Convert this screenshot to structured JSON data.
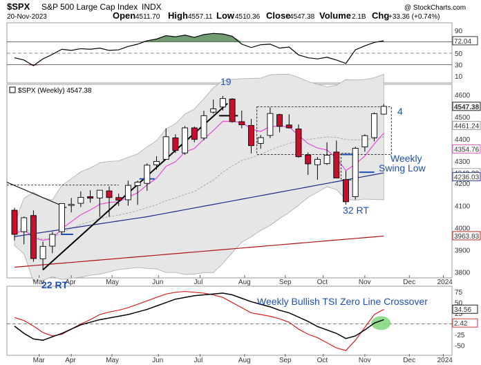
{
  "header": {
    "symbol": "$SPX",
    "name": "S&P 500 Large Cap Index",
    "exchange": "INDX",
    "watermark": "@ StockCharts.com",
    "date": "20-Nov-2023",
    "open_label": "Open",
    "open": "4511.70",
    "high_label": "High",
    "high": "4557.11",
    "low_label": "Low",
    "low": "4510.36",
    "close_label": "Close",
    "close": "4547.38",
    "volume_label": "Volume",
    "volume": "2.1B",
    "chg_label": "Chg",
    "chg": "+33.36 (+0.74%)"
  },
  "price_legend": "$SPX (Weekly) 4547.38",
  "chart_data": [
    {
      "type": "line",
      "panel": "RSI",
      "y_ticks": [
        "90",
        "70",
        "50",
        "30",
        "10"
      ],
      "ylim": [
        0,
        100
      ],
      "current_value_label": "72.04",
      "current_value": 72.04,
      "x": [
        "2023-02-20",
        "2023-02-27",
        "2023-03-06",
        "2023-03-13",
        "2023-03-20",
        "2023-03-27",
        "2023-04-03",
        "2023-04-10",
        "2023-04-17",
        "2023-04-24",
        "2023-05-01",
        "2023-05-08",
        "2023-05-15",
        "2023-05-22",
        "2023-05-29",
        "2023-06-05",
        "2023-06-12",
        "2023-06-19",
        "2023-06-26",
        "2023-07-03",
        "2023-07-10",
        "2023-07-17",
        "2023-07-24",
        "2023-07-31",
        "2023-08-07",
        "2023-08-14",
        "2023-08-21",
        "2023-08-28",
        "2023-09-04",
        "2023-09-11",
        "2023-09-18",
        "2023-09-25",
        "2023-10-02",
        "2023-10-09",
        "2023-10-16",
        "2023-10-23",
        "2023-10-30",
        "2023-11-06",
        "2023-11-13",
        "2023-11-20"
      ],
      "values": [
        42,
        38,
        28,
        40,
        48,
        57,
        55,
        58,
        57,
        59,
        55,
        56,
        62,
        66,
        72,
        75,
        81,
        79,
        82,
        78,
        83,
        85,
        84,
        80,
        66,
        60,
        65,
        66,
        59,
        61,
        47,
        42,
        40,
        43,
        38,
        32,
        56,
        63,
        69,
        72
      ]
    },
    {
      "type": "candlestick",
      "panel": "Price",
      "title": "$SPX (Weekly) 4547.38",
      "y_ticks": [
        3800,
        3900,
        4000,
        4100,
        4200,
        4300,
        4400,
        4500,
        4600
      ],
      "ylim": [
        3780,
        4640
      ],
      "x_ticks": [
        "Mar",
        "Apr",
        "May",
        "Jun",
        "Jul",
        "Aug",
        "Sep",
        "Oct",
        "Nov",
        "Dec",
        "2024"
      ],
      "value_labels": [
        "4547.38",
        "4461.24",
        "4354.76",
        "4248.29",
        "4236.03",
        "3963.83"
      ],
      "candles": [
        {
          "date": "2023-02-20",
          "o": 4079,
          "h": 4090,
          "l": 3943,
          "c": 3970
        },
        {
          "date": "2023-02-27",
          "o": 3982,
          "h": 4050,
          "l": 3925,
          "c": 4045
        },
        {
          "date": "2023-03-06",
          "o": 4055,
          "h": 4078,
          "l": 3847,
          "c": 3861
        },
        {
          "date": "2023-03-13",
          "o": 3860,
          "h": 3937,
          "l": 3809,
          "c": 3916
        },
        {
          "date": "2023-03-20",
          "o": 3917,
          "h": 3981,
          "l": 3885,
          "c": 3970
        },
        {
          "date": "2023-03-27",
          "o": 3982,
          "h": 4110,
          "l": 3970,
          "c": 4109
        },
        {
          "date": "2023-04-03",
          "o": 4102,
          "h": 4134,
          "l": 4069,
          "c": 4105
        },
        {
          "date": "2023-04-10",
          "o": 4110,
          "h": 4164,
          "l": 4093,
          "c": 4137
        },
        {
          "date": "2023-04-17",
          "o": 4140,
          "h": 4169,
          "l": 4113,
          "c": 4133
        },
        {
          "date": "2023-04-24",
          "o": 4134,
          "h": 4170,
          "l": 4049,
          "c": 4169
        },
        {
          "date": "2023-05-01",
          "o": 4166,
          "h": 4186,
          "l": 4049,
          "c": 4136
        },
        {
          "date": "2023-05-08",
          "o": 4136,
          "h": 4154,
          "l": 4098,
          "c": 4124
        },
        {
          "date": "2023-05-15",
          "o": 4126,
          "h": 4212,
          "l": 4099,
          "c": 4191
        },
        {
          "date": "2023-05-22",
          "o": 4190,
          "h": 4212,
          "l": 4103,
          "c": 4205
        },
        {
          "date": "2023-05-29",
          "o": 4200,
          "h": 4290,
          "l": 4166,
          "c": 4282
        },
        {
          "date": "2023-06-05",
          "o": 4283,
          "h": 4322,
          "l": 4262,
          "c": 4299
        },
        {
          "date": "2023-06-12",
          "o": 4308,
          "h": 4448,
          "l": 4308,
          "c": 4410
        },
        {
          "date": "2023-06-19",
          "o": 4405,
          "h": 4421,
          "l": 4337,
          "c": 4348
        },
        {
          "date": "2023-06-26",
          "o": 4337,
          "h": 4458,
          "l": 4328,
          "c": 4450
        },
        {
          "date": "2023-07-03",
          "o": 4450,
          "h": 4456,
          "l": 4385,
          "c": 4398
        },
        {
          "date": "2023-07-10",
          "o": 4404,
          "h": 4527,
          "l": 4394,
          "c": 4505
        },
        {
          "date": "2023-07-17",
          "o": 4521,
          "h": 4578,
          "l": 4514,
          "c": 4536
        },
        {
          "date": "2023-07-24",
          "o": 4544,
          "h": 4594,
          "l": 4528,
          "c": 4582
        },
        {
          "date": "2023-07-31",
          "o": 4580,
          "h": 4584,
          "l": 4474,
          "c": 4478
        },
        {
          "date": "2023-08-07",
          "o": 4478,
          "h": 4528,
          "l": 4448,
          "c": 4464
        },
        {
          "date": "2023-08-14",
          "o": 4461,
          "h": 4490,
          "l": 4335,
          "c": 4370
        },
        {
          "date": "2023-08-21",
          "o": 4380,
          "h": 4418,
          "l": 4356,
          "c": 4406
        },
        {
          "date": "2023-08-28",
          "o": 4416,
          "h": 4542,
          "l": 4404,
          "c": 4515
        },
        {
          "date": "2023-09-04",
          "o": 4510,
          "h": 4514,
          "l": 4430,
          "c": 4457
        },
        {
          "date": "2023-09-11",
          "o": 4463,
          "h": 4511,
          "l": 4447,
          "c": 4450
        },
        {
          "date": "2023-09-18",
          "o": 4445,
          "h": 4466,
          "l": 4316,
          "c": 4320
        },
        {
          "date": "2023-09-25",
          "o": 4328,
          "h": 4339,
          "l": 4238,
          "c": 4288
        },
        {
          "date": "2023-10-02",
          "o": 4284,
          "h": 4319,
          "l": 4216,
          "c": 4308
        },
        {
          "date": "2023-10-09",
          "o": 4289,
          "h": 4385,
          "l": 4283,
          "c": 4327
        },
        {
          "date": "2023-10-16",
          "o": 4341,
          "h": 4393,
          "l": 4223,
          "c": 4224
        },
        {
          "date": "2023-10-23",
          "o": 4217,
          "h": 4256,
          "l": 4104,
          "c": 4117
        },
        {
          "date": "2023-10-30",
          "o": 4140,
          "h": 4365,
          "l": 4127,
          "c": 4358
        },
        {
          "date": "2023-11-06",
          "o": 4364,
          "h": 4421,
          "l": 4343,
          "c": 4415
        },
        {
          "date": "2023-11-13",
          "o": 4406,
          "h": 4520,
          "l": 4389,
          "c": 4514
        },
        {
          "date": "2023-11-20",
          "o": 4512,
          "h": 4557,
          "l": 4510,
          "c": 4547
        }
      ],
      "annotations": [
        "19",
        "4",
        "Weekly",
        "Swing Low",
        "32 RT",
        "22 RT"
      ]
    },
    {
      "type": "line",
      "panel": "TSI",
      "y_ticks": [
        "75",
        "50",
        "25",
        "0",
        "-25",
        "-50"
      ],
      "ylim": [
        -70,
        85
      ],
      "current_value_labels": [
        "34.56",
        "2.42"
      ],
      "annotation": "Weekly Bullish TSI Zero Line Crossover",
      "x_ticks": [
        "Mar",
        "Apr",
        "May",
        "Jun",
        "Jul",
        "Aug",
        "Sep",
        "Oct",
        "Nov",
        "Dec",
        "2024"
      ],
      "series": [
        {
          "values": [
            -5,
            -22,
            -35,
            -38,
            -30,
            -22,
            -12,
            -2,
            4,
            10,
            14,
            18,
            22,
            28,
            34,
            42,
            50,
            58,
            62,
            66,
            68,
            70,
            72,
            68,
            60,
            52,
            46,
            40,
            32,
            26,
            16,
            6,
            -6,
            -14,
            -22,
            -34,
            -28,
            -14,
            2,
            10
          ]
        },
        {
          "values": [
            15,
            8,
            -5,
            -20,
            -28,
            -24,
            -12,
            0,
            10,
            22,
            28,
            32,
            38,
            46,
            54,
            62,
            70,
            74,
            76,
            74,
            72,
            68,
            62,
            50,
            38,
            26,
            22,
            18,
            12,
            4,
            -12,
            -24,
            -32,
            -44,
            -56,
            -62,
            -38,
            -8,
            22,
            34
          ]
        }
      ]
    }
  ]
}
